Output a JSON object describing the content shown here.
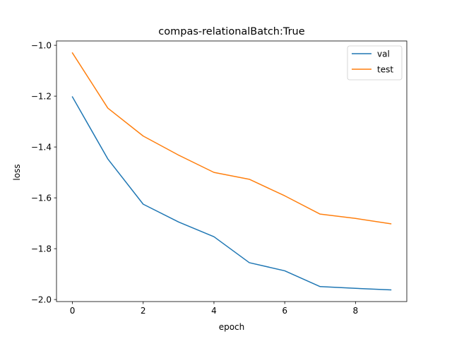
{
  "chart_data": {
    "type": "line",
    "title": "compas-relationalBatch:True",
    "xlabel": "epoch",
    "ylabel": "loss",
    "xlim": [
      -0.45,
      9.45
    ],
    "ylim": [
      -2.008,
      -0.983
    ],
    "xticks": [
      0,
      2,
      4,
      6,
      8
    ],
    "yticks": [
      -1.0,
      -1.2,
      -1.4,
      -1.6,
      -1.8,
      -2.0
    ],
    "xtick_labels": [
      "0",
      "2",
      "4",
      "6",
      "8"
    ],
    "ytick_labels": [
      "−1.0",
      "−1.2",
      "−1.4",
      "−1.6",
      "−1.8",
      "−2.0"
    ],
    "grid": false,
    "legend_position": "top-right",
    "x": [
      0,
      1,
      2,
      3,
      4,
      5,
      6,
      7,
      8,
      9
    ],
    "series": [
      {
        "name": "val",
        "color": "#1f77b4",
        "values": [
          -1.203,
          -1.447,
          -1.625,
          -1.695,
          -1.753,
          -1.855,
          -1.887,
          -1.949,
          -1.956,
          -1.962
        ]
      },
      {
        "name": "test",
        "color": "#ff7f0e",
        "values": [
          -1.03,
          -1.247,
          -1.357,
          -1.432,
          -1.5,
          -1.527,
          -1.592,
          -1.664,
          -1.681,
          -1.702
        ]
      }
    ]
  }
}
